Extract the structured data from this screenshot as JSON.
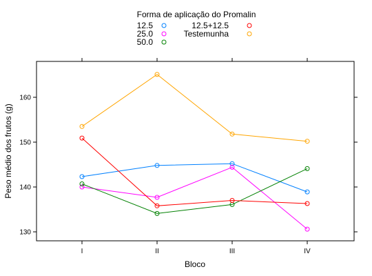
{
  "chart_data": {
    "type": "line",
    "title": "",
    "xlabel": "Bloco",
    "ylabel": "Peso médio dos frutos (g)",
    "categories": [
      "I",
      "II",
      "III",
      "IV"
    ],
    "ylim": [
      128,
      168
    ],
    "yticks": [
      130,
      140,
      150,
      160
    ],
    "grid": false,
    "legend": {
      "title": "Forma de aplicação do Promalin",
      "placement": "top"
    },
    "series": [
      {
        "name": "12.5",
        "color": "#0080ff",
        "values": [
          142.3,
          144.8,
          145.2,
          138.9
        ]
      },
      {
        "name": "25.0",
        "color": "#ff00ff",
        "values": [
          140.0,
          137.7,
          144.4,
          130.6
        ]
      },
      {
        "name": "50.0",
        "color": "#008000",
        "values": [
          140.7,
          134.1,
          136.1,
          144.1
        ]
      },
      {
        "name": "12.5+12.5",
        "color": "#ff0000",
        "values": [
          150.9,
          135.8,
          137.0,
          136.3
        ]
      },
      {
        "name": "Testemunha",
        "color": "#ffa500",
        "values": [
          153.5,
          165.1,
          151.8,
          150.2
        ]
      }
    ]
  }
}
